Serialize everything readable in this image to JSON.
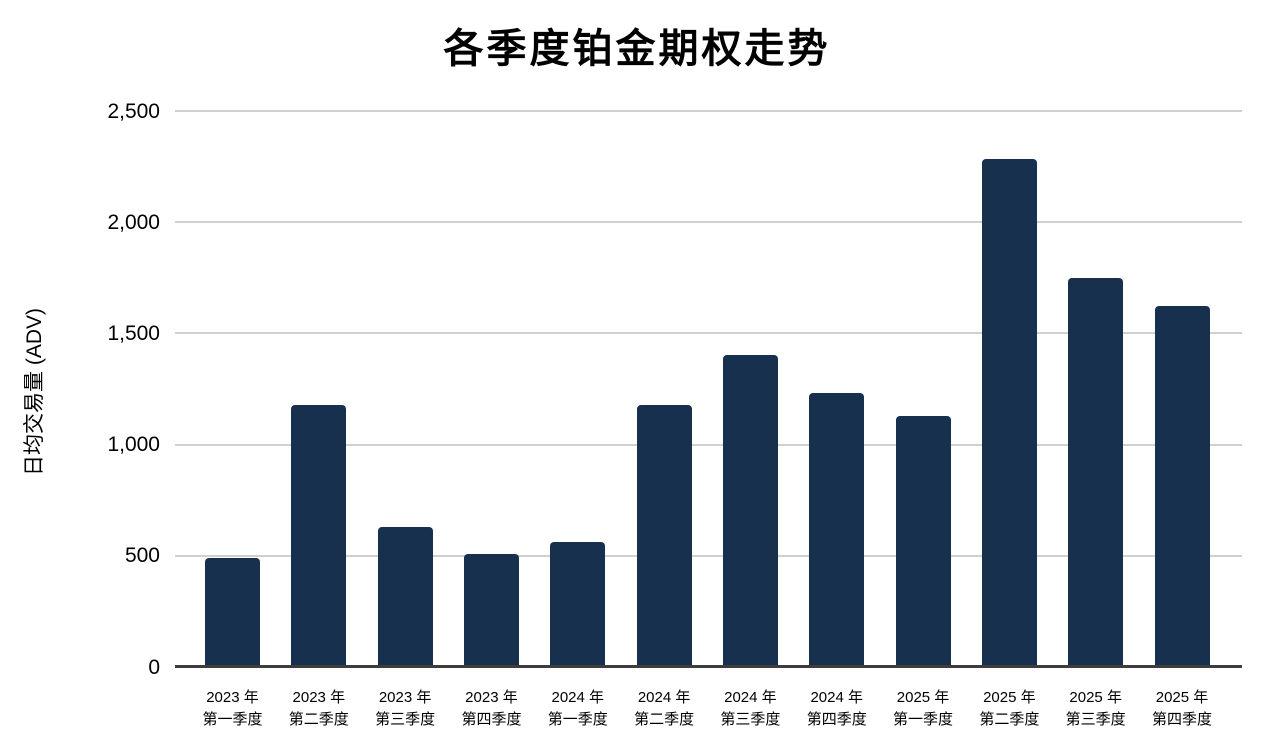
{
  "chart_data": {
    "type": "bar",
    "title": "各季度铂金期权走势",
    "xlabel": "",
    "ylabel": "日均交易量 (ADV)",
    "categories": [
      {
        "line1": "2023 年",
        "line2": "第一季度"
      },
      {
        "line1": "2023 年",
        "line2": "第二季度"
      },
      {
        "line1": "2023 年",
        "line2": "第三季度"
      },
      {
        "line1": "2023 年",
        "line2": "第四季度"
      },
      {
        "line1": "2024 年",
        "line2": "第一季度"
      },
      {
        "line1": "2024 年",
        "line2": "第二季度"
      },
      {
        "line1": "2024 年",
        "line2": "第三季度"
      },
      {
        "line1": "2024 年",
        "line2": "第四季度"
      },
      {
        "line1": "2025 年",
        "line2": "第一季度"
      },
      {
        "line1": "2025 年",
        "line2": "第二季度"
      },
      {
        "line1": "2025 年",
        "line2": "第三季度"
      },
      {
        "line1": "2025 年",
        "line2": "第四季度"
      }
    ],
    "values": [
      490,
      1180,
      630,
      510,
      560,
      1180,
      1405,
      1230,
      1130,
      2285,
      1750,
      1625
    ],
    "ylim": [
      0,
      2500
    ],
    "y_ticks": [
      0,
      500,
      1000,
      1500,
      2000,
      2500
    ],
    "y_tick_labels": [
      "0",
      "500",
      "1,000",
      "1,500",
      "2,000",
      "2,500"
    ],
    "grid": true,
    "legend": false,
    "colors": {
      "bar": "#16304d",
      "gridline": "#d0d0d0",
      "axis": "#3d3d3d",
      "text": "#000000",
      "background": "#ffffff"
    }
  }
}
